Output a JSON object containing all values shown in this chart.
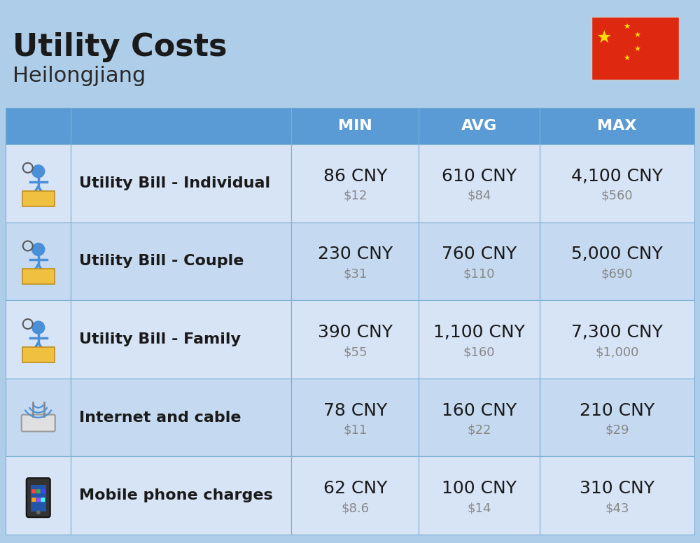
{
  "title": "Utility Costs",
  "subtitle": "Heilongjiang",
  "background_color": "#aecde8",
  "header_bg_color": "#5b9bd5",
  "row_bg_light": "#c5d9f0",
  "row_bg_dark": "#b8d0e8",
  "header_text_color": "#ffffff",
  "cell_border_color": "#7bafd4",
  "columns": [
    "MIN",
    "AVG",
    "MAX"
  ],
  "rows": [
    {
      "label": "Utility Bill - Individual",
      "icon": "utility_individual",
      "min_cny": "86 CNY",
      "min_usd": "$12",
      "avg_cny": "610 CNY",
      "avg_usd": "$84",
      "max_cny": "4,100 CNY",
      "max_usd": "$560"
    },
    {
      "label": "Utility Bill - Couple",
      "icon": "utility_couple",
      "min_cny": "230 CNY",
      "min_usd": "$31",
      "avg_cny": "760 CNY",
      "avg_usd": "$110",
      "max_cny": "5,000 CNY",
      "max_usd": "$690"
    },
    {
      "label": "Utility Bill - Family",
      "icon": "utility_family",
      "min_cny": "390 CNY",
      "min_usd": "$55",
      "avg_cny": "1,100 CNY",
      "avg_usd": "$160",
      "max_cny": "7,300 CNY",
      "max_usd": "$1,000"
    },
    {
      "label": "Internet and cable",
      "icon": "internet",
      "min_cny": "78 CNY",
      "min_usd": "$11",
      "avg_cny": "160 CNY",
      "avg_usd": "$22",
      "max_cny": "210 CNY",
      "max_usd": "$29"
    },
    {
      "label": "Mobile phone charges",
      "icon": "mobile",
      "min_cny": "62 CNY",
      "min_usd": "$8.6",
      "avg_cny": "100 CNY",
      "avg_usd": "$14",
      "max_cny": "310 CNY",
      "max_usd": "$43"
    }
  ],
  "title_fontsize": 32,
  "subtitle_fontsize": 22,
  "header_fontsize": 16,
  "label_fontsize": 16,
  "value_fontsize": 18,
  "usd_fontsize": 13
}
